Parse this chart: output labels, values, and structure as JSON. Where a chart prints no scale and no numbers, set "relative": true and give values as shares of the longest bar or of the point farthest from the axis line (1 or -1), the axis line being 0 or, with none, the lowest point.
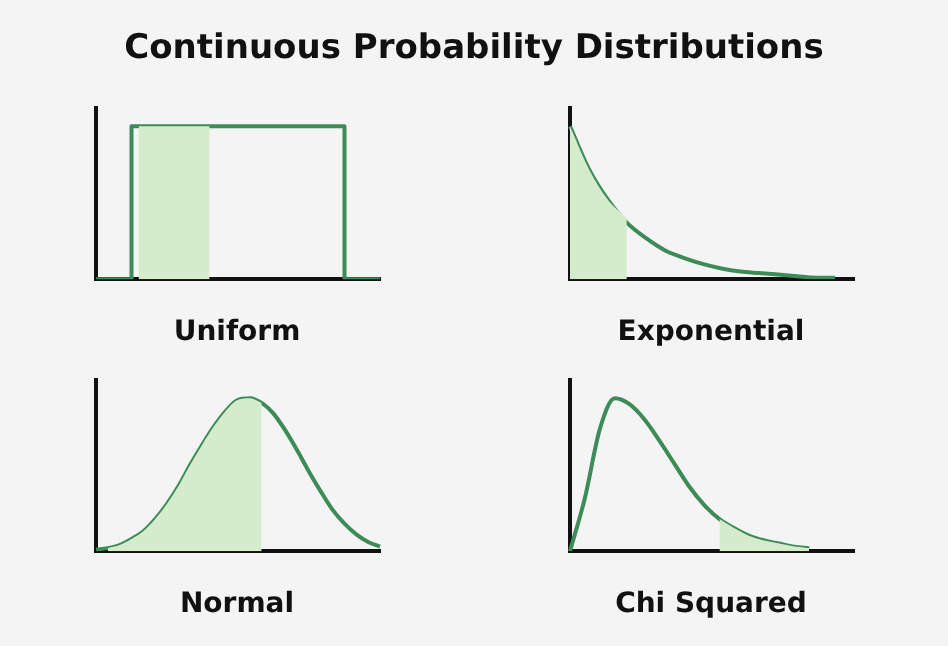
{
  "chart_data": [
    {
      "type": "step",
      "title": "Continuous Probability Distributions",
      "xlabel": "Uniform",
      "relative": true,
      "grid": false,
      "legend": false,
      "categories": [
        null,
        null,
        null,
        null,
        null,
        null,
        null,
        null,
        null,
        null,
        null,
        null,
        null,
        null,
        null,
        null,
        null,
        null,
        null,
        null,
        null
      ],
      "series": [
        {
          "type": "area",
          "color": "#d4ebcc",
          "values": [
            null,
            null,
            null,
            1,
            1,
            1,
            1,
            1,
            1,
            null,
            null,
            null,
            null,
            null,
            null,
            null,
            null,
            null,
            null,
            null,
            null
          ]
        },
        {
          "color": "#3d8b57",
          "values": [
            0,
            0,
            0,
            1,
            1,
            1,
            1,
            1,
            1,
            1,
            1,
            1,
            1,
            1,
            1,
            1,
            1,
            1,
            0,
            0,
            0
          ]
        }
      ]
    },
    {
      "type": "line",
      "xlabel": "Exponential",
      "relative": true,
      "grid": false,
      "legend": false,
      "categories": [
        null,
        null,
        null,
        null,
        null,
        null,
        null,
        null,
        null,
        null,
        null,
        null,
        null,
        null,
        null,
        null
      ],
      "series": [
        {
          "type": "area",
          "color": "#d4ebcc",
          "values": [
            1,
            0.72,
            0.52,
            0.4,
            null,
            null,
            null,
            null,
            null,
            null,
            null,
            null,
            null,
            null,
            null,
            null
          ]
        },
        {
          "color": "#3d8b57",
          "values": [
            1,
            0.72,
            0.52,
            0.37,
            0.27,
            0.19,
            0.14,
            0.1,
            0.07,
            0.05,
            0.04,
            0.03,
            0.02,
            0.01,
            0.01,
            null
          ]
        }
      ]
    },
    {
      "type": "line",
      "xlabel": "Normal",
      "relative": true,
      "grid": false,
      "legend": false,
      "categories": [
        null,
        null,
        null,
        null,
        null,
        null,
        null,
        null,
        null,
        null,
        null,
        null,
        null,
        null,
        null,
        null,
        null,
        null,
        null,
        null,
        null,
        null,
        null,
        null,
        null
      ],
      "series": [
        {
          "type": "area",
          "color": "#d4ebcc",
          "values": [
            null,
            0.02,
            0.04,
            0.08,
            0.13,
            0.21,
            0.31,
            0.43,
            0.57,
            0.7,
            0.82,
            0.92,
            0.99,
            1,
            0.97,
            null,
            null,
            null,
            null,
            null,
            null,
            null,
            null,
            null,
            null
          ]
        },
        {
          "color": "#3d8b57",
          "values": [
            0.01,
            0.02,
            0.04,
            0.08,
            0.13,
            0.21,
            0.31,
            0.43,
            0.57,
            0.7,
            0.82,
            0.92,
            0.99,
            1,
            0.97,
            0.9,
            0.79,
            0.66,
            0.52,
            0.39,
            0.27,
            0.18,
            0.11,
            0.06,
            0.03
          ]
        }
      ]
    },
    {
      "type": "line",
      "xlabel": "Chi Squared",
      "relative": true,
      "grid": false,
      "legend": false,
      "categories": [
        null,
        null,
        null,
        null,
        null,
        null,
        null,
        null,
        null,
        null,
        null,
        null,
        null,
        null,
        null,
        null,
        null,
        null,
        null,
        null
      ],
      "series": [
        {
          "type": "area",
          "color": "#d4ebcc",
          "values": [
            null,
            null,
            null,
            null,
            null,
            null,
            null,
            null,
            null,
            null,
            0.21,
            0.15,
            0.1,
            0.07,
            0.05,
            0.03,
            0.02,
            null,
            null,
            null
          ]
        },
        {
          "color": "#3d8b57",
          "values": [
            0,
            0.35,
            0.8,
            1,
            0.96,
            0.86,
            0.72,
            0.57,
            0.42,
            0.3,
            0.21,
            0.15,
            0.1,
            0.07,
            0.05,
            0.03,
            0.02,
            null,
            null,
            null
          ]
        }
      ]
    }
  ]
}
